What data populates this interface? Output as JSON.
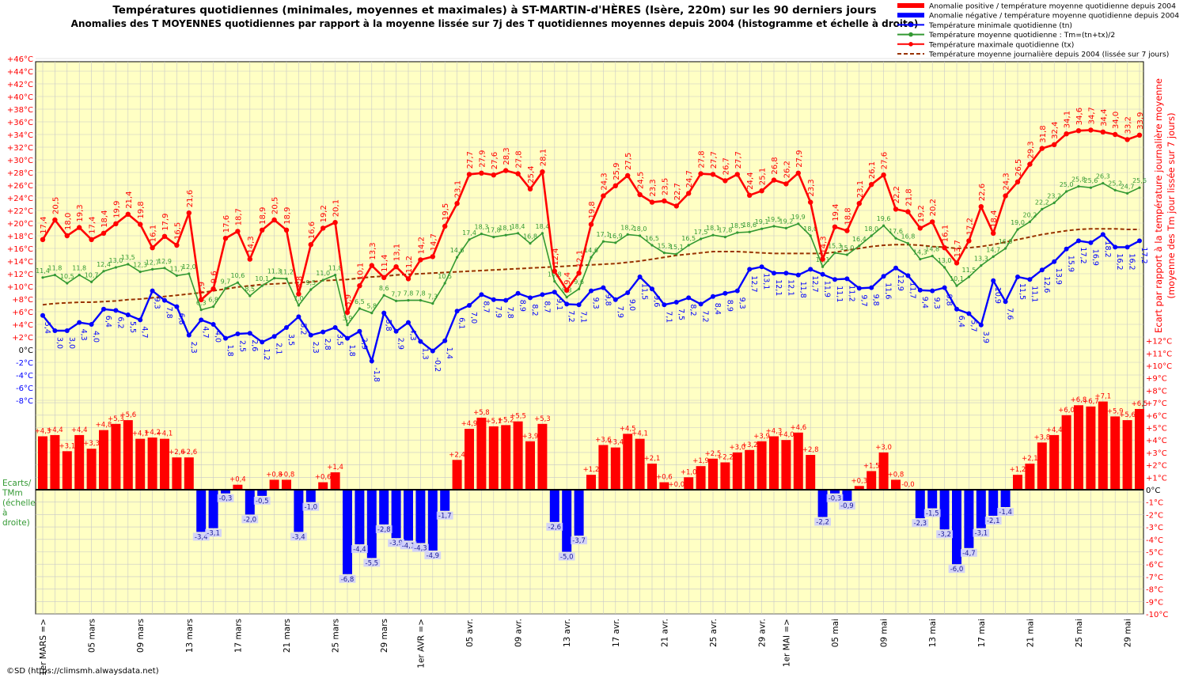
{
  "title": "Températures quotidiennes (minimales, moyennes et maximales) à ST-MARTIN-d'HÈRES (Isère, 220m) sur les 90 derniers jours",
  "subtitle": "Anomalies des T MOYENNES quotidiennes par rapport à la moyenne lissée sur 7j des T quotidiennes moyennes depuis 2004 (histogramme et échelle à droite)",
  "right_axis_label_line1": "Ecart  par rapport à la  température  journalière  moyenne",
  "right_axis_label_line2": "(moyenne des Tm jour lissée sur 7 jours)",
  "left_note": [
    "Ecarts/",
    "TMm",
    "(échelle",
    "à",
    "droite)"
  ],
  "credit": "©SD (https://climsmh.alwaysdata.net)",
  "legend": [
    {
      "label": "Anomalie positive / température moyenne quotidienne depuis 2004",
      "color": "#ff0000",
      "kind": "bar"
    },
    {
      "label": "Anomalie négative / température moyenne quotidienne depuis 2004",
      "color": "#0000ff",
      "kind": "bar"
    },
    {
      "label": "Température minimale quotidienne (tn)",
      "color": "#0000ff",
      "kind": "line-dot"
    },
    {
      "label": "Température moyenne quotidienne : Tm=(tn+tx)/2",
      "color": "#339933",
      "kind": "line-dot"
    },
    {
      "label": "Température maximale quotidienne (tx)",
      "color": "#ff0000",
      "kind": "line-dot"
    },
    {
      "label": "Température moyenne journalière depuis 2004 (lissée sur 7 jours)",
      "color": "#993300",
      "kind": "dashed"
    }
  ],
  "colors": {
    "plot_bg": "#ffffc4",
    "grid": "#c8c8c8",
    "tx": "#ff0000",
    "tn": "#0000ff",
    "tm": "#339933",
    "clim": "#993300",
    "pos": "#ff0000",
    "neg": "#0000ff",
    "left_axis": "#ff0000",
    "right_axis": "#ff0000"
  },
  "chart_data": {
    "type": "line",
    "x_tick_labels": [
      {
        "day": 0,
        "label": "1er MARS =>"
      },
      {
        "day": 4,
        "label": "05 mars"
      },
      {
        "day": 8,
        "label": "09 mars"
      },
      {
        "day": 12,
        "label": "13 mars"
      },
      {
        "day": 16,
        "label": "17 mars"
      },
      {
        "day": 20,
        "label": "21 mars"
      },
      {
        "day": 24,
        "label": "25 mars"
      },
      {
        "day": 28,
        "label": "29 mars"
      },
      {
        "day": 31,
        "label": "1er AVR =>"
      },
      {
        "day": 35,
        "label": "05 avr."
      },
      {
        "day": 39,
        "label": "09 avr."
      },
      {
        "day": 43,
        "label": "13 avr."
      },
      {
        "day": 47,
        "label": "17 avr."
      },
      {
        "day": 51,
        "label": "21 avr."
      },
      {
        "day": 55,
        "label": "25 avr."
      },
      {
        "day": 59,
        "label": "29 avr."
      },
      {
        "day": 61,
        "label": "1er MAI =>"
      },
      {
        "day": 65,
        "label": "05 mai"
      },
      {
        "day": 69,
        "label": "09 mai"
      },
      {
        "day": 73,
        "label": "13 mai"
      },
      {
        "day": 77,
        "label": "17 mai"
      },
      {
        "day": 81,
        "label": "21 mai"
      },
      {
        "day": 85,
        "label": "25 mai"
      },
      {
        "day": 89,
        "label": "29 mai"
      }
    ],
    "left_yticks": [
      "+46°C",
      "+44°C",
      "+42°C",
      "+40°C",
      "+38°C",
      "+36°C",
      "+34°C",
      "+32°C",
      "+30°C",
      "+28°C",
      "+26°C",
      "+24°C",
      "+22°C",
      "+20°C",
      "+18°C",
      "+16°C",
      "+14°C",
      "+12°C",
      "+10°C",
      "+8°C",
      "+6°C",
      "+4°C",
      "+2°C",
      "0°C",
      "-2°C",
      "-4°C",
      "-6°C",
      "-8°C"
    ],
    "right_yticks": [
      "+12°C",
      "+11°C",
      "+10°C",
      "+9°C",
      "+8°C",
      "+7°C",
      "+6°C",
      "+5°C",
      "+4°C",
      "+3°C",
      "+2°C",
      "+1°C",
      "0°C",
      "-1°C",
      "-2°C",
      "-3°C",
      "-4°C",
      "-5°C",
      "-6°C",
      "-7°C",
      "-8°C",
      "-9°C",
      "-10°C"
    ],
    "left_ylim": [
      -8,
      46
    ],
    "right_ylim": [
      -10,
      12
    ],
    "tx": [
      17.4,
      20.5,
      18.0,
      19.3,
      17.4,
      18.4,
      19.9,
      21.4,
      19.8,
      16.1,
      17.9,
      16.5,
      21.6,
      7.9,
      9.6,
      17.6,
      18.7,
      14.3,
      18.9,
      20.5,
      18.9,
      8.8,
      16.6,
      19.2,
      20.1,
      5.9,
      10.1,
      13.3,
      11.4,
      13.1,
      11.2,
      14.2,
      14.7,
      19.5,
      23.1,
      27.7,
      27.9,
      27.6,
      28.3,
      27.8,
      25.4,
      28.1,
      12.4,
      9.4,
      12.1,
      19.8,
      24.3,
      25.9,
      27.5,
      24.5,
      23.3,
      23.5,
      22.7,
      24.7,
      27.8,
      27.7,
      26.7,
      27.7,
      24.4,
      25.1,
      26.8,
      26.2,
      27.9,
      23.3,
      14.3,
      19.4,
      18.8,
      23.1,
      26.1,
      27.6,
      22.2,
      21.8,
      19.2,
      20.2,
      16.1,
      13.7,
      17.2,
      22.6,
      18.4,
      24.3,
      26.5,
      29.3,
      31.8,
      32.4,
      34.1,
      34.6,
      34.7,
      34.4,
      34.0,
      33.2,
      33.9
    ],
    "tn": [
      5.4,
      3.0,
      3.0,
      4.3,
      4.0,
      6.4,
      6.2,
      5.5,
      4.7,
      9.3,
      7.8,
      6.8,
      2.3,
      4.7,
      4.0,
      1.8,
      2.5,
      2.6,
      1.2,
      2.1,
      3.5,
      5.2,
      2.3,
      2.8,
      3.5,
      1.8,
      2.9,
      -1.8,
      5.8,
      2.9,
      4.3,
      1.3,
      -0.2,
      1.4,
      6.1,
      7.0,
      8.7,
      7.9,
      7.8,
      8.9,
      8.2,
      8.7,
      9.1,
      7.2,
      7.1,
      9.3,
      9.8,
      7.9,
      9.0,
      11.5,
      9.6,
      7.1,
      7.5,
      8.2,
      7.2,
      8.4,
      8.9,
      9.3,
      12.7,
      13.1,
      12.1,
      12.1,
      11.8,
      12.7,
      11.9,
      11.1,
      11.2,
      9.7,
      9.8,
      11.6,
      12.9,
      11.7,
      9.4,
      9.3,
      9.8,
      6.4,
      5.7,
      3.9,
      10.9,
      7.6,
      11.5,
      11.1,
      12.6,
      13.9,
      15.9,
      17.2,
      16.9,
      18.2,
      16.2,
      16.2,
      17.2
    ],
    "tm": [
      11.4,
      11.8,
      10.5,
      11.8,
      10.7,
      12.4,
      13.0,
      13.5,
      12.3,
      12.7,
      12.9,
      11.7,
      12.0,
      6.3,
      6.8,
      9.7,
      10.6,
      8.5,
      10.1,
      11.3,
      11.2,
      7.0,
      9.5,
      11.0,
      11.8,
      3.9,
      6.5,
      5.8,
      8.6,
      7.7,
      7.8,
      7.8,
      7.3,
      10.5,
      14.6,
      17.4,
      18.3,
      17.8,
      18.1,
      18.4,
      16.8,
      18.4,
      10.8,
      8.3,
      9.6,
      14.6,
      17.1,
      16.9,
      18.2,
      18.0,
      16.5,
      15.3,
      15.1,
      16.5,
      17.5,
      18.1,
      17.8,
      18.5,
      18.6,
      19.1,
      19.5,
      19.2,
      19.9,
      18.0,
      13.1,
      15.3,
      15.0,
      16.4,
      18.0,
      19.6,
      17.6,
      16.8,
      14.3,
      14.8,
      13.0,
      10.1,
      11.5,
      13.3,
      14.7,
      16.0,
      19.0,
      20.2,
      22.2,
      23.2,
      25.0,
      25.8,
      25.6,
      26.3,
      25.2,
      24.7,
      25.6
    ],
    "clim": [
      7.1,
      7.3,
      7.4,
      7.5,
      7.5,
      7.6,
      7.7,
      7.9,
      8.0,
      8.2,
      8.4,
      8.6,
      8.8,
      9.0,
      9.3,
      9.6,
      9.9,
      10.1,
      10.3,
      10.4,
      10.5,
      10.6,
      10.7,
      10.9,
      11.0,
      11.1,
      11.3,
      11.5,
      11.6,
      11.8,
      11.9,
      12.0,
      12.1,
      12.2,
      12.3,
      12.4,
      12.5,
      12.6,
      12.7,
      12.8,
      12.9,
      13.0,
      13.1,
      13.2,
      13.3,
      13.4,
      13.5,
      13.6,
      13.8,
      14.0,
      14.3,
      14.6,
      14.9,
      15.1,
      15.3,
      15.5,
      15.5,
      15.5,
      15.4,
      15.3,
      15.2,
      15.2,
      15.2,
      15.2,
      15.2,
      15.4,
      15.7,
      16.0,
      16.3,
      16.5,
      16.6,
      16.6,
      16.5,
      16.3,
      16.2,
      16.0,
      16.1,
      16.3,
      16.6,
      17.0,
      17.4,
      17.8,
      18.2,
      18.5,
      18.8,
      19.0,
      19.1,
      19.1,
      19.1,
      19.0,
      19.0
    ],
    "anomaly": [
      4.3,
      4.4,
      3.1,
      4.4,
      3.3,
      4.8,
      5.3,
      5.6,
      4.1,
      4.2,
      4.1,
      2.6,
      2.6,
      -3.4,
      -3.1,
      -0.3,
      0.4,
      -2.0,
      -0.5,
      0.8,
      0.8,
      -3.4,
      -1.0,
      0.6,
      1.4,
      -6.8,
      -4.4,
      -5.5,
      -2.8,
      -3.9,
      -4.1,
      -4.3,
      -4.9,
      -1.7,
      2.4,
      4.9,
      5.8,
      5.1,
      5.2,
      5.5,
      3.9,
      5.3,
      -2.6,
      -5.0,
      -3.7,
      1.2,
      3.6,
      3.4,
      4.5,
      4.1,
      2.1,
      0.6,
      0.0,
      1.0,
      1.9,
      2.5,
      2.2,
      3.0,
      3.2,
      3.9,
      4.3,
      4.0,
      4.6,
      2.8,
      -2.2,
      -0.3,
      -0.9,
      0.3,
      1.5,
      3.0,
      0.8,
      -0.0,
      -2.3,
      -1.5,
      -3.2,
      -6.0,
      -4.7,
      -3.1,
      -2.1,
      -1.4,
      1.2,
      2.1,
      3.8,
      4.4,
      6.0,
      6.8,
      6.7,
      7.1,
      5.9,
      5.6,
      6.5
    ]
  }
}
